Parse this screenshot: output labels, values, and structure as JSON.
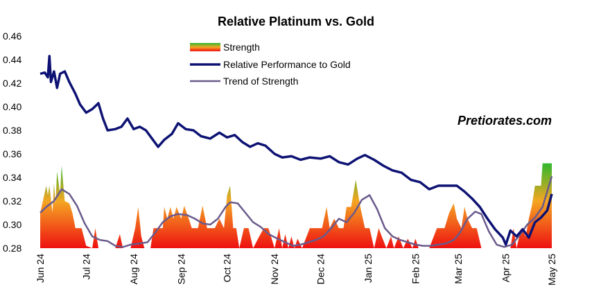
{
  "chart_data": {
    "type": "line",
    "title": "Relative Platinum vs. Gold",
    "watermark": "Pretiorates.com",
    "xlabel": "",
    "ylabel": "",
    "ylim": [
      0.28,
      0.46
    ],
    "y_ticks": [
      "0.28",
      "0.30",
      "0.32",
      "0.34",
      "0.36",
      "0.38",
      "0.40",
      "0.42",
      "0.44",
      "0.46"
    ],
    "x_range": [
      "2024-06-01",
      "2025-05-01"
    ],
    "x_ticks": [
      "Jun 24",
      "Jul 24",
      "Aug 24",
      "Sep 24",
      "Oct 24",
      "Nov 24",
      "Dec 24",
      "Jan 25",
      "Feb 25",
      "Mar 25",
      "Apr 25",
      "May 25"
    ],
    "legend_position": "top-center",
    "grid": false,
    "colors": {
      "relative_performance": "#0d1273",
      "trend_of_strength": "#6a5a8c",
      "strength_top": "#2db82d",
      "strength_mid": "#f5a623",
      "strength_bottom": "#ee1111"
    },
    "series": [
      {
        "name": "Relative Performance to Gold",
        "style": "line",
        "points": [
          [
            "2024-06-01",
            0.428
          ],
          [
            "2024-06-04",
            0.429
          ],
          [
            "2024-06-06",
            0.425
          ],
          [
            "2024-06-07",
            0.443
          ],
          [
            "2024-06-08",
            0.421
          ],
          [
            "2024-06-10",
            0.43
          ],
          [
            "2024-06-12",
            0.416
          ],
          [
            "2024-06-14",
            0.428
          ],
          [
            "2024-06-17",
            0.43
          ],
          [
            "2024-06-20",
            0.421
          ],
          [
            "2024-06-24",
            0.411
          ],
          [
            "2024-06-27",
            0.402
          ],
          [
            "2024-07-01",
            0.395
          ],
          [
            "2024-07-05",
            0.398
          ],
          [
            "2024-07-09",
            0.403
          ],
          [
            "2024-07-12",
            0.39
          ],
          [
            "2024-07-15",
            0.38
          ],
          [
            "2024-07-20",
            0.381
          ],
          [
            "2024-07-24",
            0.383
          ],
          [
            "2024-07-28",
            0.39
          ],
          [
            "2024-08-01",
            0.381
          ],
          [
            "2024-08-05",
            0.383
          ],
          [
            "2024-08-09",
            0.38
          ],
          [
            "2024-08-13",
            0.373
          ],
          [
            "2024-08-17",
            0.366
          ],
          [
            "2024-08-21",
            0.372
          ],
          [
            "2024-08-26",
            0.377
          ],
          [
            "2024-08-30",
            0.386
          ],
          [
            "2024-09-04",
            0.381
          ],
          [
            "2024-09-09",
            0.38
          ],
          [
            "2024-09-14",
            0.375
          ],
          [
            "2024-09-20",
            0.373
          ],
          [
            "2024-09-26",
            0.378
          ],
          [
            "2024-10-01",
            0.374
          ],
          [
            "2024-10-06",
            0.376
          ],
          [
            "2024-10-11",
            0.37
          ],
          [
            "2024-10-16",
            0.366
          ],
          [
            "2024-10-21",
            0.369
          ],
          [
            "2024-10-26",
            0.367
          ],
          [
            "2024-11-01",
            0.36
          ],
          [
            "2024-11-06",
            0.357
          ],
          [
            "2024-11-12",
            0.358
          ],
          [
            "2024-11-18",
            0.355
          ],
          [
            "2024-11-24",
            0.357
          ],
          [
            "2024-12-01",
            0.356
          ],
          [
            "2024-12-07",
            0.358
          ],
          [
            "2024-12-13",
            0.353
          ],
          [
            "2024-12-19",
            0.351
          ],
          [
            "2024-12-25",
            0.356
          ],
          [
            "2024-12-30",
            0.359
          ],
          [
            "2025-01-05",
            0.355
          ],
          [
            "2025-01-11",
            0.35
          ],
          [
            "2025-01-17",
            0.346
          ],
          [
            "2025-01-23",
            0.344
          ],
          [
            "2025-01-29",
            0.338
          ],
          [
            "2025-02-04",
            0.336
          ],
          [
            "2025-02-10",
            0.33
          ],
          [
            "2025-02-16",
            0.333
          ],
          [
            "2025-02-22",
            0.333
          ],
          [
            "2025-02-28",
            0.333
          ],
          [
            "2025-03-05",
            0.328
          ],
          [
            "2025-03-10",
            0.322
          ],
          [
            "2025-03-15",
            0.315
          ],
          [
            "2025-03-20",
            0.305
          ],
          [
            "2025-03-25",
            0.296
          ],
          [
            "2025-03-30",
            0.289
          ],
          [
            "2025-04-01",
            0.283
          ],
          [
            "2025-04-04",
            0.295
          ],
          [
            "2025-04-08",
            0.29
          ],
          [
            "2025-04-12",
            0.296
          ],
          [
            "2025-04-16",
            0.289
          ],
          [
            "2025-04-20",
            0.302
          ],
          [
            "2025-04-24",
            0.306
          ],
          [
            "2025-04-28",
            0.312
          ],
          [
            "2025-05-01",
            0.326
          ]
        ]
      },
      {
        "name": "Trend of Strength",
        "style": "line",
        "points": [
          [
            "2024-06-01",
            0.31
          ],
          [
            "2024-06-05",
            0.315
          ],
          [
            "2024-06-10",
            0.32
          ],
          [
            "2024-06-15",
            0.33
          ],
          [
            "2024-06-20",
            0.326
          ],
          [
            "2024-06-25",
            0.316
          ],
          [
            "2024-06-30",
            0.301
          ],
          [
            "2024-07-05",
            0.29
          ],
          [
            "2024-07-10",
            0.287
          ],
          [
            "2024-07-15",
            0.286
          ],
          [
            "2024-07-20",
            0.282
          ],
          [
            "2024-07-25",
            0.281
          ],
          [
            "2024-07-30",
            0.283
          ],
          [
            "2024-08-05",
            0.284
          ],
          [
            "2024-08-10",
            0.285
          ],
          [
            "2024-08-15",
            0.293
          ],
          [
            "2024-08-20",
            0.302
          ],
          [
            "2024-08-25",
            0.307
          ],
          [
            "2024-08-30",
            0.309
          ],
          [
            "2024-09-05",
            0.308
          ],
          [
            "2024-09-10",
            0.305
          ],
          [
            "2024-09-15",
            0.301
          ],
          [
            "2024-09-20",
            0.3
          ],
          [
            "2024-09-25",
            0.305
          ],
          [
            "2024-09-30",
            0.315
          ],
          [
            "2024-10-03",
            0.319
          ],
          [
            "2024-10-08",
            0.318
          ],
          [
            "2024-10-13",
            0.31
          ],
          [
            "2024-10-18",
            0.302
          ],
          [
            "2024-10-23",
            0.298
          ],
          [
            "2024-10-28",
            0.292
          ],
          [
            "2024-11-03",
            0.288
          ],
          [
            "2024-11-08",
            0.285
          ],
          [
            "2024-11-13",
            0.282
          ],
          [
            "2024-11-18",
            0.283
          ],
          [
            "2024-11-23",
            0.285
          ],
          [
            "2024-11-28",
            0.287
          ],
          [
            "2024-12-03",
            0.29
          ],
          [
            "2024-12-08",
            0.297
          ],
          [
            "2024-12-13",
            0.305
          ],
          [
            "2024-12-18",
            0.302
          ],
          [
            "2024-12-23",
            0.31
          ],
          [
            "2024-12-28",
            0.321
          ],
          [
            "2025-01-02",
            0.325
          ],
          [
            "2025-01-07",
            0.313
          ],
          [
            "2025-01-12",
            0.297
          ],
          [
            "2025-01-17",
            0.29
          ],
          [
            "2025-01-22",
            0.287
          ],
          [
            "2025-01-27",
            0.285
          ],
          [
            "2025-02-01",
            0.283
          ],
          [
            "2025-02-06",
            0.282
          ],
          [
            "2025-02-11",
            0.282
          ],
          [
            "2025-02-16",
            0.283
          ],
          [
            "2025-02-21",
            0.284
          ],
          [
            "2025-02-26",
            0.287
          ],
          [
            "2025-03-02",
            0.293
          ],
          [
            "2025-03-07",
            0.305
          ],
          [
            "2025-03-12",
            0.311
          ],
          [
            "2025-03-16",
            0.309
          ],
          [
            "2025-03-21",
            0.294
          ],
          [
            "2025-03-26",
            0.283
          ],
          [
            "2025-03-31",
            0.281
          ],
          [
            "2025-04-05",
            0.283
          ],
          [
            "2025-04-10",
            0.291
          ],
          [
            "2025-04-15",
            0.3
          ],
          [
            "2025-04-20",
            0.306
          ],
          [
            "2025-04-25",
            0.315
          ],
          [
            "2025-05-01",
            0.341
          ]
        ]
      },
      {
        "name": "Strength",
        "style": "gradient-area",
        "baseline": 0.28,
        "points": [
          [
            "2024-06-01",
            0.31
          ],
          [
            "2024-06-05",
            0.333
          ],
          [
            "2024-06-06",
            0.325
          ],
          [
            "2024-06-07",
            0.333
          ],
          [
            "2024-06-09",
            0.31
          ],
          [
            "2024-06-10",
            0.335
          ],
          [
            "2024-06-11",
            0.318
          ],
          [
            "2024-06-12",
            0.345
          ],
          [
            "2024-06-14",
            0.326
          ],
          [
            "2024-06-15",
            0.35
          ],
          [
            "2024-06-17",
            0.32
          ],
          [
            "2024-06-20",
            0.318
          ],
          [
            "2024-06-22",
            0.31
          ],
          [
            "2024-06-24",
            0.297
          ],
          [
            "2024-06-28",
            0.297
          ],
          [
            "2024-07-01",
            0.282
          ],
          [
            "2024-07-05",
            0.28
          ],
          [
            "2024-07-07",
            0.297
          ],
          [
            "2024-07-09",
            0.28
          ],
          [
            "2024-07-20",
            0.28
          ],
          [
            "2024-07-23",
            0.292
          ],
          [
            "2024-07-25",
            0.28
          ],
          [
            "2024-07-30",
            0.28
          ],
          [
            "2024-08-02",
            0.297
          ],
          [
            "2024-08-04",
            0.315
          ],
          [
            "2024-08-06",
            0.29
          ],
          [
            "2024-08-08",
            0.28
          ],
          [
            "2024-08-12",
            0.28
          ],
          [
            "2024-08-14",
            0.297
          ],
          [
            "2024-08-20",
            0.297
          ],
          [
            "2024-08-21",
            0.315
          ],
          [
            "2024-08-23",
            0.305
          ],
          [
            "2024-08-25",
            0.315
          ],
          [
            "2024-08-27",
            0.305
          ],
          [
            "2024-08-29",
            0.315
          ],
          [
            "2024-09-01",
            0.305
          ],
          [
            "2024-09-03",
            0.316
          ],
          [
            "2024-09-06",
            0.305
          ],
          [
            "2024-09-08",
            0.297
          ],
          [
            "2024-09-12",
            0.297
          ],
          [
            "2024-09-15",
            0.316
          ],
          [
            "2024-09-18",
            0.297
          ],
          [
            "2024-09-23",
            0.297
          ],
          [
            "2024-09-26",
            0.305
          ],
          [
            "2024-09-29",
            0.297
          ],
          [
            "2024-10-01",
            0.325
          ],
          [
            "2024-10-03",
            0.333
          ],
          [
            "2024-10-05",
            0.297
          ],
          [
            "2024-10-07",
            0.297
          ],
          [
            "2024-10-09",
            0.28
          ],
          [
            "2024-10-12",
            0.297
          ],
          [
            "2024-10-15",
            0.297
          ],
          [
            "2024-10-18",
            0.28
          ],
          [
            "2024-10-22",
            0.29
          ],
          [
            "2024-10-25",
            0.297
          ],
          [
            "2024-10-28",
            0.297
          ],
          [
            "2024-11-01",
            0.28
          ],
          [
            "2024-11-04",
            0.297
          ],
          [
            "2024-11-06",
            0.28
          ],
          [
            "2024-11-08",
            0.292
          ],
          [
            "2024-11-10",
            0.28
          ],
          [
            "2024-11-12",
            0.29
          ],
          [
            "2024-11-14",
            0.28
          ],
          [
            "2024-11-16",
            0.288
          ],
          [
            "2024-11-19",
            0.28
          ],
          [
            "2024-11-24",
            0.297
          ],
          [
            "2024-12-02",
            0.297
          ],
          [
            "2024-12-05",
            0.315
          ],
          [
            "2024-12-07",
            0.297
          ],
          [
            "2024-12-10",
            0.305
          ],
          [
            "2024-12-13",
            0.297
          ],
          [
            "2024-12-16",
            0.297
          ],
          [
            "2024-12-18",
            0.315
          ],
          [
            "2024-12-21",
            0.315
          ],
          [
            "2024-12-24",
            0.338
          ],
          [
            "2024-12-27",
            0.315
          ],
          [
            "2024-12-30",
            0.297
          ],
          [
            "2025-01-02",
            0.297
          ],
          [
            "2025-01-05",
            0.28
          ],
          [
            "2025-01-08",
            0.297
          ],
          [
            "2025-01-10",
            0.29
          ],
          [
            "2025-01-13",
            0.28
          ],
          [
            "2025-01-16",
            0.29
          ],
          [
            "2025-01-18",
            0.28
          ],
          [
            "2025-01-21",
            0.29
          ],
          [
            "2025-01-24",
            0.28
          ],
          [
            "2025-01-27",
            0.288
          ],
          [
            "2025-01-30",
            0.28
          ],
          [
            "2025-02-01",
            0.288
          ],
          [
            "2025-02-03",
            0.28
          ],
          [
            "2025-02-10",
            0.28
          ],
          [
            "2025-02-15",
            0.297
          ],
          [
            "2025-02-20",
            0.297
          ],
          [
            "2025-02-23",
            0.31
          ],
          [
            "2025-02-26",
            0.318
          ],
          [
            "2025-02-28",
            0.305
          ],
          [
            "2025-03-03",
            0.297
          ],
          [
            "2025-03-05",
            0.315
          ],
          [
            "2025-03-07",
            0.305
          ],
          [
            "2025-03-10",
            0.297
          ],
          [
            "2025-03-13",
            0.297
          ],
          [
            "2025-03-16",
            0.28
          ],
          [
            "2025-03-20",
            0.28
          ],
          [
            "2025-03-25",
            0.28
          ],
          [
            "2025-03-31",
            0.28
          ],
          [
            "2025-04-04",
            0.28
          ],
          [
            "2025-04-06",
            0.297
          ],
          [
            "2025-04-08",
            0.28
          ],
          [
            "2025-04-11",
            0.297
          ],
          [
            "2025-04-14",
            0.29
          ],
          [
            "2025-04-16",
            0.305
          ],
          [
            "2025-04-18",
            0.316
          ],
          [
            "2025-04-20",
            0.333
          ],
          [
            "2025-04-24",
            0.333
          ],
          [
            "2025-04-25",
            0.352
          ],
          [
            "2025-05-01",
            0.352
          ]
        ]
      }
    ]
  }
}
